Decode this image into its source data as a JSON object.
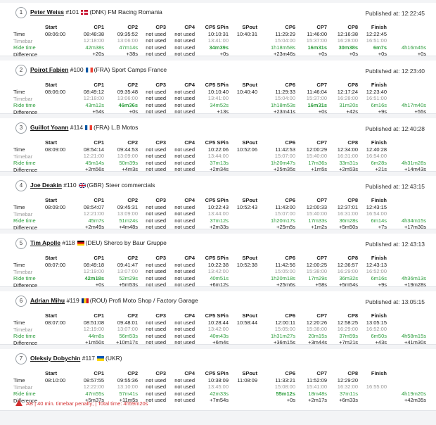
{
  "labels": {
    "start": "Start",
    "time": "Time",
    "timebar": "Timebar",
    "ride": "Ride time",
    "diff": "Difference",
    "published_prefix": "Published at: ",
    "cols": [
      "CP1",
      "CP2",
      "CP3",
      "CP4",
      "CP5 SPin",
      "SPout",
      "CP6",
      "CP7",
      "CP8",
      "Finish"
    ]
  },
  "riders": [
    {
      "pos": "1",
      "name": "Peter Weiss",
      "num": "#101",
      "flag": "dk",
      "country": "(DNK) FM Racing Romania",
      "published": "12:22:45",
      "start": "08:06:00",
      "cells": [
        {
          "t": "08:48:38",
          "b": "12:18:00",
          "r": "42m38s",
          "d": "+20s"
        },
        {
          "t": "09:35:52",
          "b": "13:06:00",
          "r": "47m14s",
          "d": "+38s"
        },
        {
          "t": "not used",
          "b": "not used",
          "r": "not used",
          "d": "not used"
        },
        {
          "t": "not used",
          "b": "not used",
          "r": "not used",
          "d": "not used"
        },
        {
          "t": "10:10:31",
          "b": "13:41:00",
          "r": "34m39s",
          "d": "+0s",
          "rb": true
        },
        {
          "t": "10:40:31",
          "b": "",
          "r": "",
          "d": ""
        },
        {
          "t": "11:29:29",
          "b": "15:04:00",
          "r": "1h18m58s",
          "d": "+23m46s"
        },
        {
          "t": "11:46:00",
          "b": "15:37:00",
          "r": "16m31s",
          "d": "+0s",
          "rb": true
        },
        {
          "t": "12:16:38",
          "b": "16:28:00",
          "r": "30m38s",
          "d": "+0s",
          "rb": true
        },
        {
          "t": "12:22:45",
          "b": "16:51:00",
          "r": "6m7s",
          "d": "+0s",
          "rb": true
        }
      ],
      "total": {
        "r": "4h16m45s",
        "d": "+0s",
        "rb": true
      }
    },
    {
      "pos": "2",
      "name": "Poirot Fabien",
      "num": "#100",
      "flag": "fr",
      "country": "(FRA) Sport Camps France",
      "published": "12:23:40",
      "start": "08:06:00",
      "cells": [
        {
          "t": "08:49:12",
          "b": "12:18:00",
          "r": "43m12s",
          "d": "+54s"
        },
        {
          "t": "09:35:48",
          "b": "13:06:00",
          "r": "46m36s",
          "d": "+0s",
          "rb": true
        },
        {
          "t": "not used",
          "b": "not used",
          "r": "not used",
          "d": "not used"
        },
        {
          "t": "not used",
          "b": "not used",
          "r": "not used",
          "d": "not used"
        },
        {
          "t": "10:10:40",
          "b": "13:41:00",
          "r": "34m52s",
          "d": "+13s"
        },
        {
          "t": "10:40:40",
          "b": "",
          "r": "",
          "d": ""
        },
        {
          "t": "11:29:33",
          "b": "15:04:00",
          "r": "1h18m53s",
          "d": "+23m41s"
        },
        {
          "t": "11:46:04",
          "b": "15:37:00",
          "r": "16m31s",
          "d": "+0s",
          "rb": true
        },
        {
          "t": "12:17:24",
          "b": "16:28:00",
          "r": "31m20s",
          "d": "+42s"
        },
        {
          "t": "12:23:40",
          "b": "16:51:00",
          "r": "6m16s",
          "d": "+9s"
        }
      ],
      "total": {
        "r": "4h17m40s",
        "d": "+55s"
      }
    },
    {
      "pos": "3",
      "name": "Guillot Yoann",
      "num": "#114",
      "flag": "fr",
      "country": "(FRA) L.B Motos",
      "published": "12:40:28",
      "start": "08:09:00",
      "cells": [
        {
          "t": "08:54:14",
          "b": "12:21:00",
          "r": "45m14s",
          "d": "+2m56s"
        },
        {
          "t": "09:44:53",
          "b": "13:09:00",
          "r": "50m39s",
          "d": "+4m3s"
        },
        {
          "t": "not used",
          "b": "not used",
          "r": "not used",
          "d": "not used"
        },
        {
          "t": "not used",
          "b": "not used",
          "r": "not used",
          "d": "not used"
        },
        {
          "t": "10:22:06",
          "b": "13:44:00",
          "r": "37m13s",
          "d": "+2m34s"
        },
        {
          "t": "10:52:06",
          "b": "",
          "r": "",
          "d": ""
        },
        {
          "t": "11:42:53",
          "b": "15:07:00",
          "r": "1h20m47s",
          "d": "+25m35s"
        },
        {
          "t": "12:00:29",
          "b": "15:40:00",
          "r": "17m36s",
          "d": "+1m5s"
        },
        {
          "t": "12:34:00",
          "b": "16:31:00",
          "r": "33m31s",
          "d": "+2m53s"
        },
        {
          "t": "12:40:28",
          "b": "16:54:00",
          "r": "6m28s",
          "d": "+21s"
        }
      ],
      "total": {
        "r": "4h31m28s",
        "d": "+14m43s"
      }
    },
    {
      "pos": "4",
      "name": "Joe Deakin",
      "num": "#110",
      "flag": "gb",
      "country": "(GBR) Steer commercials",
      "published": "12:43:15",
      "start": "08:09:00",
      "cells": [
        {
          "t": "08:54:07",
          "b": "12:21:00",
          "r": "45m7s",
          "d": "+2m49s"
        },
        {
          "t": "09:45:31",
          "b": "13:09:00",
          "r": "51m24s",
          "d": "+4m48s"
        },
        {
          "t": "not used",
          "b": "not used",
          "r": "not used",
          "d": "not used"
        },
        {
          "t": "not used",
          "b": "not used",
          "r": "not used",
          "d": "not used"
        },
        {
          "t": "10:22:43",
          "b": "13:44:00",
          "r": "37m12s",
          "d": "+2m33s"
        },
        {
          "t": "10:52:43",
          "b": "",
          "r": "",
          "d": ""
        },
        {
          "t": "11:43:00",
          "b": "15:07:00",
          "r": "1h20m17s",
          "d": "+25m5s"
        },
        {
          "t": "12:00:33",
          "b": "15:40:00",
          "r": "17m33s",
          "d": "+1m2s"
        },
        {
          "t": "12:37:01",
          "b": "16:31:00",
          "r": "36m28s",
          "d": "+5m50s"
        },
        {
          "t": "12:43:15",
          "b": "16:54:00",
          "r": "6m14s",
          "d": "+7s"
        }
      ],
      "total": {
        "r": "4h34m15s",
        "d": "+17m30s"
      }
    },
    {
      "pos": "5",
      "name": "Tim Apolle",
      "num": "#118",
      "flag": "de",
      "country": "(DEU) Sherco by Baur Gruppe",
      "published": "12:43:13",
      "start": "08:07:00",
      "cells": [
        {
          "t": "08:49:18",
          "b": "12:19:00",
          "r": "42m18s",
          "d": "+0s",
          "rb": true
        },
        {
          "t": "09:41:47",
          "b": "13:07:00",
          "r": "52m29s",
          "d": "+5m53s"
        },
        {
          "t": "not used",
          "b": "not used",
          "r": "not used",
          "d": "not used"
        },
        {
          "t": "not used",
          "b": "not used",
          "r": "not used",
          "d": "not used"
        },
        {
          "t": "10:22:38",
          "b": "13:42:00",
          "r": "40m51s",
          "d": "+6m12s"
        },
        {
          "t": "10:52:38",
          "b": "",
          "r": "",
          "d": ""
        },
        {
          "t": "11:42:56",
          "b": "15:05:00",
          "r": "1h20m18s",
          "d": "+25m6s"
        },
        {
          "t": "12:00:25",
          "b": "15:38:00",
          "r": "17m29s",
          "d": "+58s"
        },
        {
          "t": "12:36:57",
          "b": "16:29:00",
          "r": "36m32s",
          "d": "+5m54s"
        },
        {
          "t": "12:43:13",
          "b": "16:52:00",
          "r": "6m16s",
          "d": "+9s"
        }
      ],
      "total": {
        "r": "4h36m13s",
        "d": "+19m28s"
      }
    },
    {
      "pos": "6",
      "name": "Adrian Mihu",
      "num": "#119",
      "flag": "ro",
      "country": "(ROU) Profi Moto Shop / Factory Garage",
      "published": "13:05:15",
      "start": "08:07:00",
      "cells": [
        {
          "t": "08:51:08",
          "b": "12:19:00",
          "r": "44m8s",
          "d": "+1m50s"
        },
        {
          "t": "09:48:01",
          "b": "13:07:00",
          "r": "56m53s",
          "d": "+10m17s"
        },
        {
          "t": "not used",
          "b": "not used",
          "r": "not used",
          "d": "not used"
        },
        {
          "t": "not used",
          "b": "not used",
          "r": "not used",
          "d": "not used"
        },
        {
          "t": "10:28:44",
          "b": "13:42:00",
          "r": "40m43s",
          "d": "+6m4s"
        },
        {
          "t": "10:58:44",
          "b": "",
          "r": "",
          "d": ""
        },
        {
          "t": "12:00:11",
          "b": "15:05:00",
          "r": "1h31m27s",
          "d": "+36m15s"
        },
        {
          "t": "12:20:26",
          "b": "15:38:00",
          "r": "20m15s",
          "d": "+3m44s"
        },
        {
          "t": "12:58:25",
          "b": "16:29:00",
          "r": "37m59s",
          "d": "+7m21s"
        },
        {
          "t": "13:05:15",
          "b": "16:52:00",
          "r": "6m50s",
          "d": "+43s"
        }
      ],
      "total": {
        "r": "4h58m15s",
        "d": "+41m30s"
      }
    },
    {
      "pos": "7",
      "name": "Oleksiy Dobychin",
      "num": "#117",
      "flag": "ua",
      "country": "(UKR)",
      "published": "",
      "start": "08:10:00",
      "cells": [
        {
          "t": "08:57:55",
          "b": "12:22:00",
          "r": "47m55s",
          "d": "+5m37s"
        },
        {
          "t": "09:55:36",
          "b": "13:10:00",
          "r": "57m41s",
          "d": "+11m5s"
        },
        {
          "t": "not used",
          "b": "not used",
          "r": "not used",
          "d": "not used"
        },
        {
          "t": "not used",
          "b": "not used",
          "r": "not used",
          "d": "not used"
        },
        {
          "t": "10:38:09",
          "b": "13:45:00",
          "r": "42m33s",
          "d": "+7m54s"
        },
        {
          "t": "11:08:09",
          "b": "",
          "r": "",
          "d": ""
        },
        {
          "t": "11:33:21",
          "b": "15:08:00",
          "r": "55m12s",
          "d": "+0s",
          "rb": true
        },
        {
          "t": "11:52:09",
          "b": "15:41:00",
          "r": "18m48s",
          "d": "+2m17s"
        },
        {
          "t": "12:29:20",
          "b": "16:32:00",
          "r": "37m11s",
          "d": "+6m33s"
        },
        {
          "t": "",
          "b": "16:55:00",
          "r": "",
          "d": ""
        }
      ],
      "total": {
        "r": "4h19m20s",
        "d": "+42m35s"
      },
      "note": "AB | 40 min. timebar penalty; | Total time: 4h59m20s"
    }
  ],
  "colors": {
    "green": "#2e9e3e",
    "grey": "#999999",
    "red": "#d32f2f"
  }
}
